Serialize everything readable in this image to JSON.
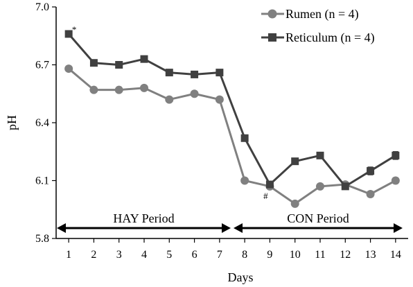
{
  "chart_data": {
    "type": "line",
    "xlabel": "Days",
    "ylabel": "pH",
    "x": [
      1,
      2,
      3,
      4,
      5,
      6,
      7,
      8,
      9,
      10,
      11,
      12,
      13,
      14
    ],
    "x_tick_labels": [
      "1",
      "2",
      "3",
      "4",
      "5",
      "6",
      "7",
      "8",
      "9",
      "10",
      "11",
      "12",
      "13",
      "14"
    ],
    "ylim": [
      5.8,
      7.0
    ],
    "y_ticks": [
      5.8,
      6.1,
      6.4,
      6.7,
      7.0
    ],
    "y_tick_labels": [
      "5.8",
      "6.1",
      "6.4",
      "6.7",
      "7.0"
    ],
    "grid": false,
    "legend_position": "top-right",
    "series": [
      {
        "name": "Rumen (n = 4)",
        "color": "#808080",
        "marker": "circle",
        "values": [
          6.68,
          6.57,
          6.57,
          6.58,
          6.52,
          6.55,
          6.52,
          6.1,
          6.07,
          5.98,
          6.07,
          6.08,
          6.03,
          6.1
        ],
        "errors": [
          0,
          0,
          0,
          0,
          0,
          0,
          0,
          0,
          0.01,
          0.01,
          0,
          0.01,
          0.015,
          0.015
        ]
      },
      {
        "name": "Reticulum (n = 4)",
        "color": "#404040",
        "marker": "square",
        "values": [
          6.86,
          6.71,
          6.7,
          6.73,
          6.66,
          6.65,
          6.66,
          6.32,
          6.08,
          6.2,
          6.23,
          6.07,
          6.15,
          6.23
        ],
        "errors": [
          0,
          0,
          0,
          0,
          0,
          0,
          0,
          0,
          0.015,
          0.015,
          0.015,
          0,
          0.02,
          0.02
        ]
      }
    ],
    "annotations": [
      {
        "text": "*",
        "x": 1,
        "y": 6.86
      },
      {
        "text": "#",
        "x": 9,
        "y": 6.07
      }
    ],
    "periods": [
      {
        "label": "HAY Period",
        "from": 1,
        "to": 7
      },
      {
        "label": "CON Period",
        "from": 8,
        "to": 14
      }
    ]
  }
}
